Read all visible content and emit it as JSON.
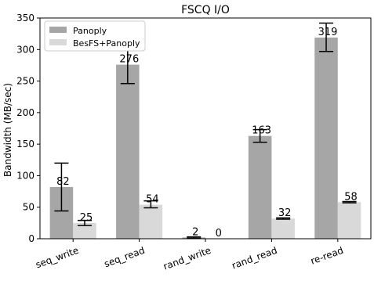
{
  "chart_data": {
    "type": "bar",
    "title": "FSCQ I/O",
    "xlabel": "",
    "ylabel": "Bandwidth (MB/sec)",
    "categories": [
      "seq_write",
      "seq_read",
      "rand_write",
      "rand_read",
      "re-read"
    ],
    "ylim": [
      0,
      350
    ],
    "yticks": [
      0,
      50,
      100,
      150,
      200,
      250,
      300,
      350
    ],
    "grid": false,
    "legend_position": "top-left",
    "series": [
      {
        "name": "Panoply",
        "color": "#a6a6a6",
        "values": [
          82,
          276,
          2,
          163,
          319
        ],
        "labels": [
          "82",
          "276",
          "2",
          "163",
          "319"
        ],
        "error_low": [
          44,
          246,
          1,
          153,
          297
        ],
        "error_high": [
          120,
          306,
          3,
          173,
          342
        ]
      },
      {
        "name": "BesFS+Panoply",
        "color": "#d9d9d9",
        "values": [
          25,
          54,
          0,
          32,
          58
        ],
        "labels": [
          "25",
          "54",
          "0",
          "32",
          "58"
        ],
        "error_low": [
          21,
          49,
          0,
          31,
          57
        ],
        "error_high": [
          29,
          60,
          0,
          33,
          59
        ]
      }
    ]
  }
}
